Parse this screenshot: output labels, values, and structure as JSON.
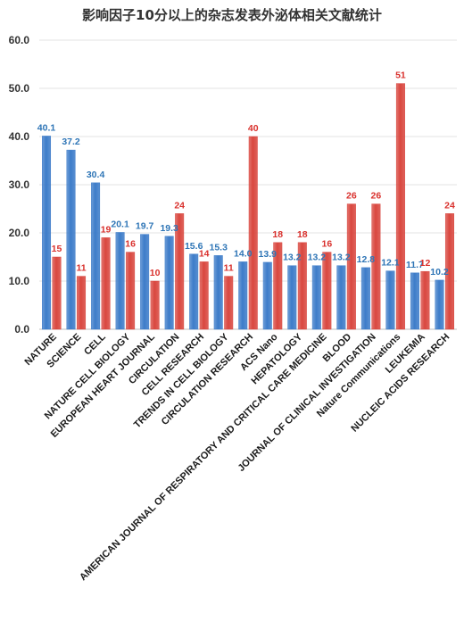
{
  "chart_data": {
    "type": "bar",
    "title": "影响因子10分以上的杂志发表外泌体相关文献统计",
    "categories": [
      "NATURE",
      "SCIENCE",
      "CELL",
      "NATURE CELL BIOLOGY",
      "EUROPEAN HEART JOURNAL",
      "CIRCULATION",
      "CELL RESEARCH",
      "TRENDS IN CELL BIOLOGY",
      "CIRCULATION RESEARCH",
      "ACS Nano",
      "HEPATOLOGY",
      "AMERICAN JOURNAL OF RESPIRATORY AND CRITICAL CARE MEDICINE",
      "BLOOD",
      "JOURNAL OF CLINICAL INVESTIGATION",
      "Nature Communications",
      "LEUKEMIA",
      "NUCLEIC ACIDS RESEARCH"
    ],
    "series": [
      {
        "color": "#3d7cc9",
        "label_color": "#2e75b6",
        "values": [
          40.1,
          37.2,
          30.4,
          20.1,
          19.7,
          19.3,
          15.6,
          15.3,
          14.0,
          13.9,
          13.2,
          13.2,
          13.2,
          12.8,
          12.1,
          11.7,
          10.2
        ],
        "labels": [
          "40.1",
          "37.2",
          "30.4",
          "20.1",
          "19.7",
          "19.3",
          "15.6",
          "15.3",
          "14.0",
          "13.9",
          "13.2",
          "13.2",
          "13.2",
          "12.8",
          "12.1",
          "11.7",
          "10.2"
        ]
      },
      {
        "color": "#d9473f",
        "label_color": "#d9302c",
        "values": [
          15,
          11,
          19,
          16,
          10,
          24,
          14,
          11,
          40,
          18,
          18,
          16,
          26,
          26,
          51,
          12,
          24
        ],
        "labels": [
          "15",
          "11",
          "19",
          "16",
          "10",
          "24",
          "14",
          "11",
          "40",
          "18",
          "18",
          "16",
          "26",
          "26",
          "51",
          "12",
          "24"
        ]
      }
    ],
    "ylim": [
      0,
      60
    ],
    "yticks": [
      "0.0",
      "10.0",
      "20.0",
      "30.0",
      "40.0",
      "50.0",
      "60.0"
    ],
    "grid": true,
    "legend": "none"
  }
}
